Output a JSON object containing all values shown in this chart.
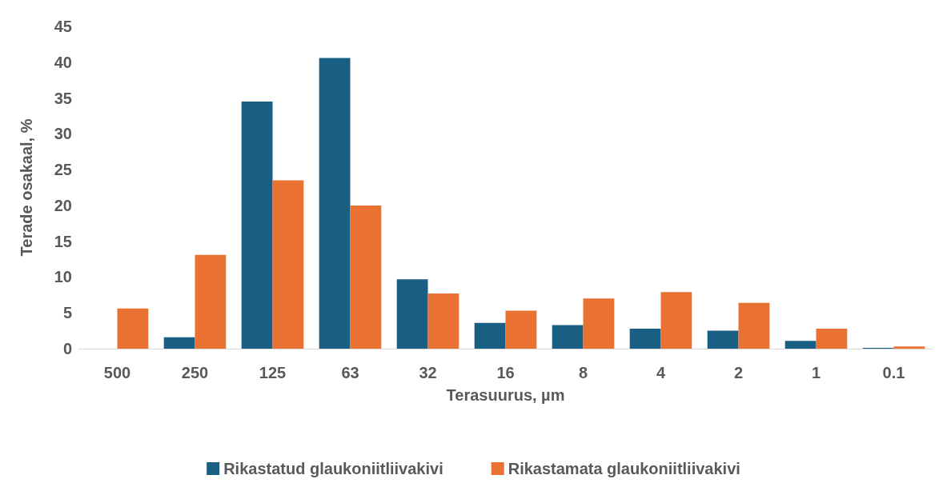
{
  "chart_data": {
    "type": "bar",
    "xlabel": "Terasuurus, µm",
    "ylabel": "Terade osakaal, %",
    "categories": [
      "500",
      "250",
      "125",
      "63",
      "32",
      "16",
      "8",
      "4",
      "2",
      "1",
      "0.1"
    ],
    "series": [
      {
        "name": "Rikastatud glaukoniitliivakivi",
        "color": "#195e83",
        "values": [
          0,
          1.6,
          34.5,
          40.6,
          9.7,
          3.6,
          3.3,
          2.8,
          2.5,
          1.1,
          0.1
        ]
      },
      {
        "name": "Rikastamata glaukoniitliivakivi",
        "color": "#e97132",
        "values": [
          5.6,
          13.1,
          23.5,
          20,
          7.7,
          5.3,
          7.0,
          7.9,
          6.4,
          2.8,
          0.3
        ]
      }
    ],
    "ylim": [
      0,
      45
    ],
    "yticks": [
      0,
      5,
      10,
      15,
      20,
      25,
      30,
      35,
      40,
      45
    ],
    "grid": false,
    "legend": "bottom"
  }
}
